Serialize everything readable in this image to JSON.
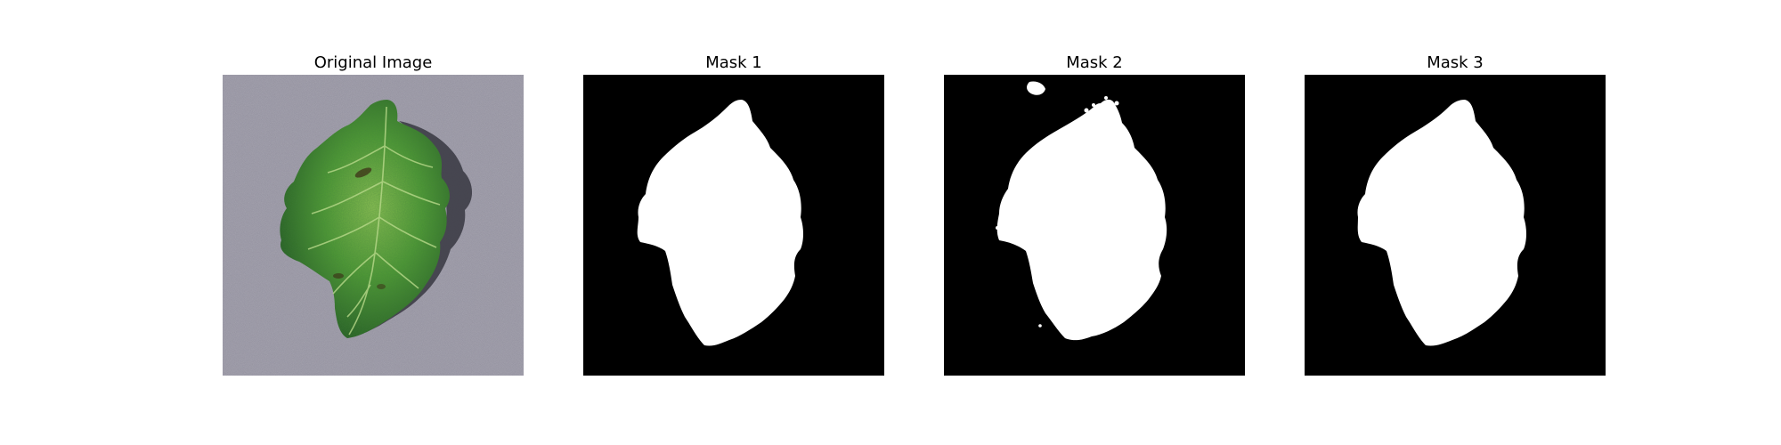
{
  "figure": {
    "panels": [
      {
        "title": "Original Image",
        "kind": "photo",
        "subject": "leaf-on-gray-surface"
      },
      {
        "title": "Mask 1",
        "kind": "binary-mask",
        "foreground_color": "#ffffff",
        "background_color": "#000000"
      },
      {
        "title": "Mask 2",
        "kind": "binary-mask",
        "foreground_color": "#ffffff",
        "background_color": "#000000"
      },
      {
        "title": "Mask 3",
        "kind": "binary-mask",
        "foreground_color": "#ffffff",
        "background_color": "#000000"
      }
    ],
    "colors": {
      "background": "#ffffff",
      "surface_gray": "#8e8c99",
      "leaf_green_dark": "#1f5a22",
      "leaf_green_light": "#7fb84a",
      "mask_foreground": "#ffffff",
      "mask_background": "#000000"
    }
  }
}
